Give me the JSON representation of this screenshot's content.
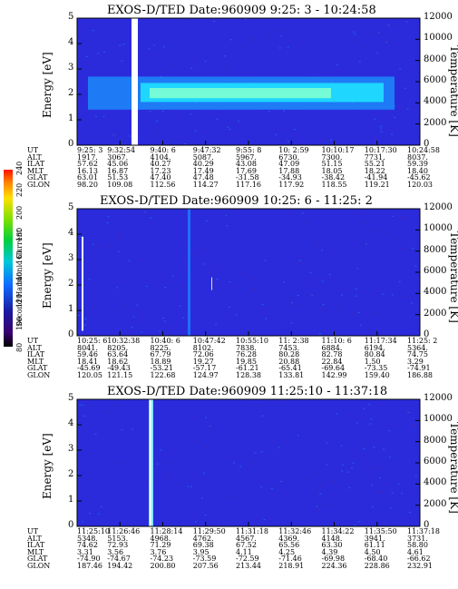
{
  "panels": [
    {
      "title": "EXOS-D/TED   Date:960909  9:25: 3 - 10:24:58",
      "row_labels": [
        "UT",
        "ALT",
        "ILAT",
        "MLT",
        "GLAT",
        "GLON"
      ],
      "columns": [
        [
          "9:25: 3",
          "1917.",
          "57.62",
          "16.13",
          "63.01",
          "98.20"
        ],
        [
          "9:32:54",
          "3067.",
          "45.06",
          "16.87",
          "51.53",
          "109.08"
        ],
        [
          "9:40: 6",
          "4104.",
          "40.27",
          "17.23",
          "47.40",
          "112.56"
        ],
        [
          "9:47:32",
          "5087.",
          "40.29",
          "17.49",
          "47.48",
          "114.27"
        ],
        [
          "9:55: 8",
          "5967.",
          "43.08",
          "17.69",
          "-31.58",
          "117.16"
        ],
        [
          "10: 2:59",
          "6730.",
          "47.09",
          "17.88",
          "-34.93",
          "117.92"
        ],
        [
          "10:10:17",
          "7300.",
          "51.15",
          "18.05",
          "-38.42",
          "118.55"
        ],
        [
          "10:17:30",
          "7731.",
          "55.21",
          "18.22",
          "-41.94",
          "119.21"
        ],
        [
          "10:24:58",
          "8037.",
          "59.39",
          "18.40",
          "-45.62",
          "120.03"
        ]
      ]
    },
    {
      "title": "EXOS-D/TED   Date:960909  10:25: 6 - 11:25: 2",
      "row_labels": [
        "UT",
        "ALT",
        "ILAT",
        "MLT",
        "GLAT",
        "GLON"
      ],
      "columns": [
        [
          "10:25: 6",
          "8041.",
          "59.46",
          "18.41",
          "-45.69",
          "120.05"
        ],
        [
          "10:32:38",
          "8205.",
          "63.64",
          "18.62",
          "-49.43",
          "121.15"
        ],
        [
          "10:40: 6",
          "8225.",
          "67.79",
          "18.89",
          "-53.21",
          "122.68"
        ],
        [
          "10:47:42",
          "8102.",
          "72.06",
          "19.27",
          "-57.17",
          "124.97"
        ],
        [
          "10:55:10",
          "7838.",
          "76.28",
          "19.85",
          "-61.21",
          "128.38"
        ],
        [
          "11: 2:38",
          "7453.",
          "80.28",
          "20.88",
          "-65.41",
          "133.81"
        ],
        [
          "11:10: 6",
          "6884.",
          "82.78",
          "22.84",
          "-69.64",
          "142.99"
        ],
        [
          "11:17:34",
          "6194.",
          "80.84",
          "1.50",
          "-73.35",
          "159.40"
        ],
        [
          "11:25: 2",
          "5364.",
          "74.75",
          "3.29",
          "-74.91",
          "186.88"
        ]
      ]
    },
    {
      "title": "EXOS-D/TED   Date:960909  11:25:10 - 11:37:18",
      "row_labels": [
        "UT",
        "ALT",
        "ILAT",
        "MLT",
        "GLAT",
        "GLON"
      ],
      "columns": [
        [
          "11:25:10",
          "5348.",
          "74.62",
          "3.31",
          "-74.90",
          "187.46"
        ],
        [
          "11:26:46",
          "5153.",
          "72.93",
          "3.56",
          "-74.67",
          "194.42"
        ],
        [
          "11:28:14",
          "4968.",
          "71.29",
          "3.76",
          "-74.23",
          "200.80"
        ],
        [
          "11:29:50",
          "4762.",
          "69.38",
          "3.95",
          "-73.59",
          "207.56"
        ],
        [
          "11:31:18",
          "4567.",
          "67.52",
          "4.11",
          "-72.59",
          "213.44"
        ],
        [
          "11:32:46",
          "4369.",
          "65.56",
          "4.25",
          "-71.46",
          "218.91"
        ],
        [
          "11:34:22",
          "4148.",
          "63.30",
          "4.39",
          "-69.98",
          "224.36"
        ],
        [
          "11:35:50",
          "3941.",
          "61.11",
          "4.50",
          "-68.40",
          "228.86"
        ],
        [
          "11:37:18",
          "3731.",
          "58.80",
          "4.61",
          "-66.62",
          "232.91"
        ]
      ]
    }
  ],
  "chart_data": {
    "type": "heatmap",
    "panels": [
      {
        "title": "EXOS-D/TED   Date:960909  9:25: 3 - 10:24:58",
        "x_ticks": [
          "9:25: 3",
          "9:32:54",
          "9:40: 6",
          "9:47:32",
          "9:55: 8",
          "10: 2:59",
          "10:10:17",
          "10:17:30",
          "10:24:58"
        ],
        "ylabel": "Energy [eV]",
        "ylim": [
          0,
          5
        ],
        "y_ticks": [
          0,
          1,
          2,
          3,
          4,
          5
        ],
        "y2label": "Temperature [K]",
        "y2lim": [
          0,
          12000
        ],
        "y2_ticks": [
          0,
          2000,
          4000,
          6000,
          8000,
          10000,
          12000
        ]
      },
      {
        "title": "EXOS-D/TED   Date:960909  10:25: 6 - 11:25: 2",
        "x_ticks": [
          "10:25: 6",
          "10:32:38",
          "10:40: 6",
          "10:47:42",
          "10:55:10",
          "11: 2:38",
          "11:10: 6",
          "11:17:34",
          "11:25: 2"
        ],
        "ylabel": "Energy [eV]",
        "ylim": [
          0,
          5
        ],
        "y_ticks": [
          0,
          1,
          2,
          3,
          4,
          5
        ],
        "y2label": "Temperature [K]",
        "y2lim": [
          0,
          12000
        ],
        "y2_ticks": [
          0,
          2000,
          4000,
          6000,
          8000,
          10000,
          12000
        ]
      },
      {
        "title": "EXOS-D/TED   Date:960909  11:25:10 - 11:37:18",
        "x_ticks": [
          "11:25:10",
          "11:26:46",
          "11:28:14",
          "11:29:50",
          "11:31:18",
          "11:32:46",
          "11:34:22",
          "11:35:50",
          "11:37:18"
        ],
        "ylabel": "Energy [eV]",
        "ylim": [
          0,
          5
        ],
        "y_ticks": [
          0,
          1,
          2,
          3,
          4,
          5
        ],
        "y2label": "Temperature [K]",
        "y2lim": [
          0,
          12000
        ],
        "y2_ticks": [
          0,
          2000,
          4000,
          6000,
          8000,
          10000,
          12000
        ]
      }
    ],
    "colorbar": {
      "label": "Second Harmonic Current",
      "ticks": [
        80,
        100,
        120,
        140,
        160,
        180,
        200,
        220,
        240
      ],
      "range": [
        80,
        240
      ]
    },
    "colors": {
      "background": "#2b2bdc",
      "band": "#1ee6ff",
      "band_core": "#7effd0"
    }
  }
}
